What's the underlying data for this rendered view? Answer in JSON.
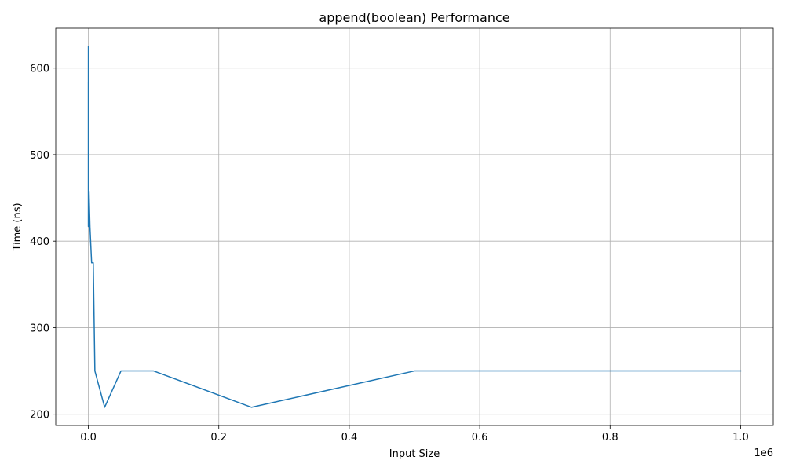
{
  "chart_data": {
    "type": "line",
    "title": "append(boolean) Performance",
    "xlabel": "Input Size",
    "ylabel": "Time (ns)",
    "x_offset_label": "1e6",
    "x_scale": 1000000,
    "xlim": [
      -50000,
      1050000
    ],
    "ylim": [
      187,
      646
    ],
    "x_ticks": [
      0,
      200000,
      400000,
      600000,
      800000,
      1000000
    ],
    "x_tick_labels": [
      "0.0",
      "0.2",
      "0.4",
      "0.6",
      "0.8",
      "1.0"
    ],
    "y_ticks": [
      200,
      300,
      400,
      500,
      600
    ],
    "y_tick_labels": [
      "200",
      "300",
      "400",
      "500",
      "600"
    ],
    "grid": true,
    "legend": "none",
    "series": [
      {
        "color": "#1f77b4",
        "x": [
          10,
          25,
          50,
          100,
          250,
          500,
          1000,
          2500,
          5000,
          7500,
          10000,
          25000,
          50000,
          100000,
          250000,
          500000,
          750000,
          1000000
        ],
        "y": [
          583,
          417,
          625,
          458,
          500,
          417,
          458,
          416,
          375,
          375,
          250,
          208,
          250,
          250,
          208,
          250,
          250,
          250
        ]
      }
    ]
  }
}
